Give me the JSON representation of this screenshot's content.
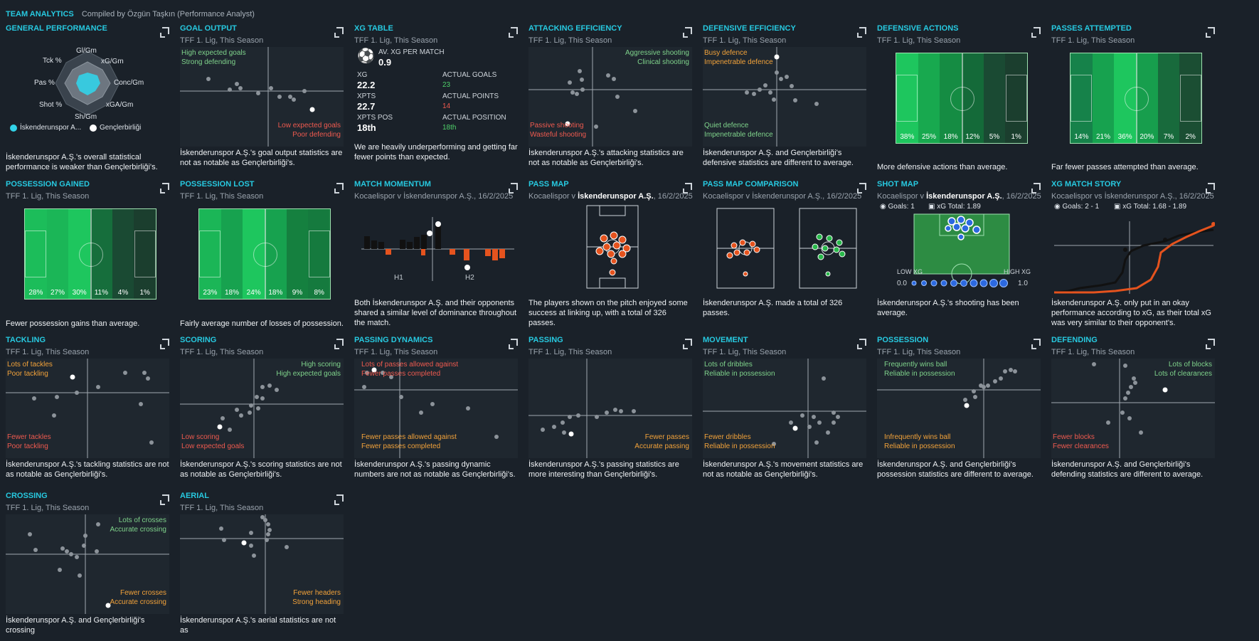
{
  "header": {
    "title": "TEAM ANALYTICS",
    "compiled": "Compiled by Özgün Taşkın (Performance Analyst)"
  },
  "panels": {
    "general": {
      "title": "GENERAL PERFORMANCE",
      "labels": {
        "gi": "Gl/Gm",
        "xg": "xG/Gm",
        "tck": "Tck %",
        "conc": "Conc/Gm",
        "pas": "Pas %",
        "shot": "Shot %",
        "xga": "xGA/Gm",
        "sh": "Sh/Gm"
      },
      "legend1": "İskenderunspor A...",
      "legend2": "Gençlerbirliği",
      "desc": "İskenderunspor A.Ş.'s overall statistical performance is weaker than Gençlerbirliği's."
    },
    "goal_output": {
      "title": "GOAL OUTPUT",
      "sub": "TFF 1. Lig, This Season",
      "tl1": "High expected goals",
      "tl2": "Strong defending",
      "br1": "Low expected goals",
      "br2": "Poor defending",
      "desc": "İskenderunspor A.Ş.'s goal output statistics are not as notable as Gençlerbirliği's."
    },
    "xg_table": {
      "title": "XG TABLE",
      "sub": "TFF 1. Lig, This Season",
      "avg_label": "AV. XG PER MATCH",
      "avg_value": "0.9",
      "xg_label": "XG",
      "xg_value": "22.2",
      "ag_label": "ACTUAL GOALS",
      "ag_value": "23",
      "xpts_label": "XPTS",
      "xpts_value": "22.7",
      "ap_label": "ACTUAL POINTS",
      "ap_value": "14",
      "xpos_label": "XPTS POS",
      "xpos_value": "18th",
      "apos_label": "ACTUAL POSITION",
      "apos_value": "18th",
      "desc": "We are heavily underperforming and getting far fewer points than expected."
    },
    "attacking": {
      "title": "ATTACKING EFFICIENCY",
      "sub": "TFF 1. Lig, This Season",
      "tr1": "Aggressive shooting",
      "tr2": "Clinical shooting",
      "bl1": "Passive shooting",
      "bl2": "Wasteful shooting",
      "desc": "İskenderunspor A.Ş.'s attacking statistics are not as notable as Gençlerbirliği's."
    },
    "defensive": {
      "title": "DEFENSIVE EFFICIENCY",
      "sub": "TFF 1. Lig, This Season",
      "tl1": "Busy defence",
      "tl2": "Impenetrable defence",
      "bl1": "Quiet defence",
      "bl2": "Impenetrable defence",
      "desc": "İskenderunspor A.Ş. and Gençlerbirliği's defensive statistics are different to average."
    },
    "def_actions": {
      "title": "DEFENSIVE ACTIONS",
      "sub": "TFF 1. Lig, This Season",
      "zones": [
        "38%",
        "25%",
        "18%",
        "12%",
        "5%",
        "1%"
      ],
      "desc": "More defensive actions than average."
    },
    "passes_att": {
      "title": "PASSES ATTEMPTED",
      "sub": "TFF 1. Lig, This Season",
      "zones": [
        "14%",
        "21%",
        "36%",
        "20%",
        "7%",
        "2%"
      ],
      "desc": "Far fewer passes attempted than average."
    },
    "poss_gained": {
      "title": "POSSESSION GAINED",
      "sub": "TFF 1. Lig, This Season",
      "zones": [
        "28%",
        "27%",
        "30%",
        "11%",
        "4%",
        "1%"
      ],
      "desc": "Fewer possession gains than average."
    },
    "poss_lost": {
      "title": "POSSESSION LOST",
      "sub": "TFF 1. Lig, This Season",
      "zones": [
        "23%",
        "18%",
        "24%",
        "18%",
        "9%",
        "8%"
      ],
      "desc": "Fairly average number of losses of possession."
    },
    "momentum": {
      "title": "MATCH MOMENTUM",
      "sub": "Kocaelispor v İskenderunspor A.Ş., 16/2/2025",
      "h1": "H1",
      "h2": "H2",
      "desc": "Both İskenderunspor A.Ş. and their opponents shared a similar level of dominance throughout the match."
    },
    "pass_map": {
      "title": "PASS MAP",
      "sub_a": "Kocaelispor v ",
      "sub_b": "İskenderunspor A.Ş.",
      "sub_c": ", 16/2/2025",
      "desc": "The players shown on the pitch enjoyed some success at linking up, with a total of 326 passes."
    },
    "pass_cmp": {
      "title": "PASS MAP COMPARISON",
      "sub": "Kocaelispor v İskenderunspor A.Ş., 16/2/2025",
      "desc": "İskenderunspor A.Ş. made a total of 326 passes."
    },
    "shot_map": {
      "title": "SHOT MAP",
      "sub_a": "Kocaelispor v ",
      "sub_b": "İskenderunspor A.Ş.",
      "sub_c": ", 16/2/2025",
      "goals": "Goals: 1",
      "xg": "xG Total: 1.89",
      "low": "LOW XG",
      "high": "HIGH XG",
      "min": "0.0",
      "max": "1.0",
      "desc": "İskenderunspor A.Ş.'s shooting has been average."
    },
    "xg_story": {
      "title": "XG MATCH STORY",
      "sub": "Kocaelispor vs İskenderunspor A.Ş., 16/2/2025",
      "goals": "Goals: 2 - 1",
      "xg": "xG Total: 1.68 - 1.89",
      "desc": "İskenderunspor A.Ş. only put in an okay performance according to xG, as their total xG was very similar to their opponent's."
    },
    "tackling": {
      "title": "TACKLING",
      "sub": "TFF 1. Lig, This Season",
      "tl1": "Lots of tackles",
      "tl2": "Poor tackling",
      "bl1": "Fewer tackles",
      "bl2": "Poor tackling",
      "desc": "İskenderunspor A.Ş.'s tackling statistics are not as notable as Gençlerbirliği's."
    },
    "scoring": {
      "title": "SCORING",
      "sub": "TFF 1. Lig, This Season",
      "tr1": "High scoring",
      "tr2": "High expected goals",
      "bl1": "Low scoring",
      "bl2": "Low expected goals",
      "desc": "İskenderunspor A.Ş.'s scoring statistics are not as notable as Gençlerbirliği's."
    },
    "pass_dyn": {
      "title": "PASSING DYNAMICS",
      "sub": "TFF 1. Lig, This Season",
      "tl1": "Lots of passes allowed against",
      "tl2": "Fewer passes completed",
      "bl1": "Fewer passes allowed against",
      "bl2": "Fewer passes completed",
      "desc": "İskenderunspor A.Ş.'s passing dynamic numbers are not as notable as Gençlerbirliği's."
    },
    "passing": {
      "title": "PASSING",
      "sub": "TFF 1. Lig, This Season",
      "br1": "Fewer passes",
      "br2": "Accurate passing",
      "desc": "İskenderunspor A.Ş.'s passing statistics are more interesting than Gençlerbirliği's."
    },
    "movement": {
      "title": "MOVEMENT",
      "sub": "TFF 1. Lig, This Season",
      "tl1": "Lots of dribbles",
      "tl2": "Reliable in possession",
      "bl1": "Fewer dribbles",
      "bl2": "Reliable in possession",
      "desc": "İskenderunspor A.Ş.'s movement statistics are not as notable as Gençlerbirliği's."
    },
    "possession": {
      "title": "POSSESSION",
      "sub": "TFF 1. Lig, This Season",
      "tl1": "Frequently wins ball",
      "tl2": "Reliable in possession",
      "bl1": "Infrequently wins ball",
      "bl2": "Reliable in possession",
      "desc": "İskenderunspor A.Ş. and Gençlerbirliği's possession statistics are different to average."
    },
    "defending": {
      "title": "DEFENDING",
      "sub": "TFF 1. Lig, This Season",
      "tr1": "Lots of blocks",
      "tr2": "Lots of clearances",
      "bl1": "Fewer blocks",
      "bl2": "Fewer clearances",
      "desc": "İskenderunspor A.Ş. and Gençlerbirliği's defending statistics are different to average."
    },
    "crossing": {
      "title": "CROSSING",
      "sub": "TFF 1. Lig, This Season",
      "tr1": "Lots of crosses",
      "tr2": "Accurate crossing",
      "br1": "Fewer crosses",
      "br2": "Accurate crossing",
      "desc": "İskenderunspor A.Ş. and Gençlerbirliği's crossing"
    },
    "aerial": {
      "title": "AERIAL",
      "sub": "TFF 1. Lig, This Season",
      "br1": "Fewer headers",
      "br2": "Strong heading",
      "desc": "İskenderunspor A.Ş.'s aerial statistics are not as"
    }
  }
}
